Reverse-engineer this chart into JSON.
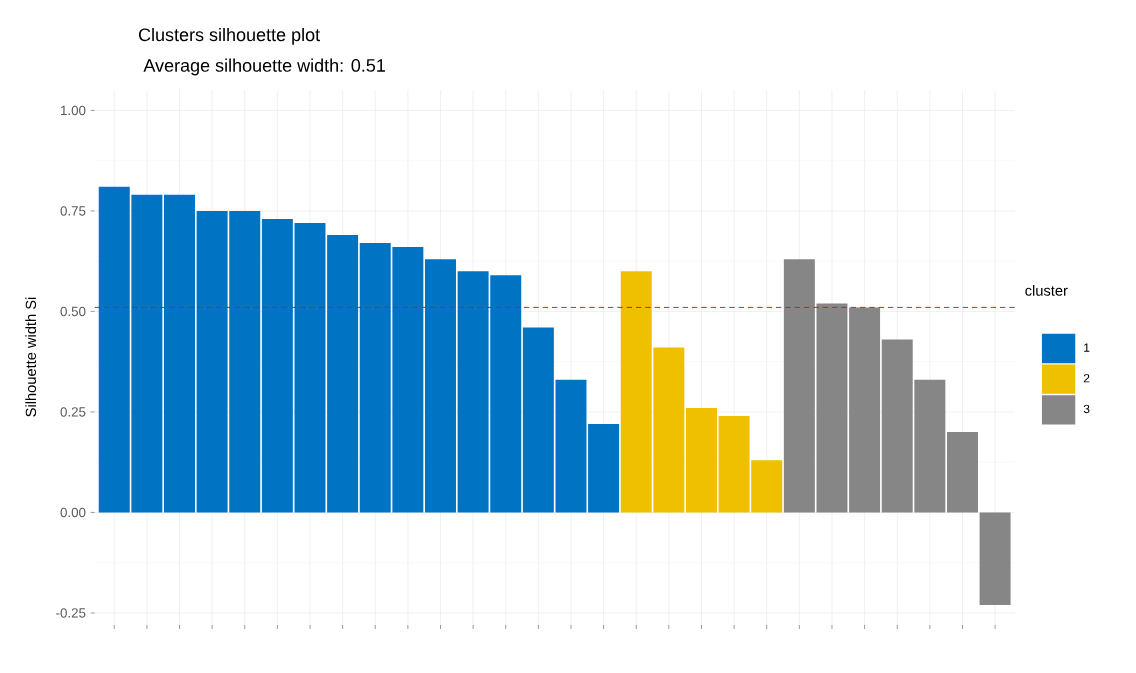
{
  "chart_data": {
    "type": "bar",
    "title": "Clusters silhouette plot",
    "subtitle": "Average silhouette width: 0.51",
    "ylabel": "Silhouette width Si",
    "legend_title": "cluster",
    "categories": [
      null,
      null,
      null,
      null,
      null,
      null,
      null,
      null,
      null,
      null,
      null,
      null,
      null,
      null,
      null,
      null,
      null,
      null,
      null,
      null,
      null,
      null,
      null,
      null,
      null,
      null,
      null,
      null
    ],
    "series": [
      {
        "name": "1",
        "color": "#0073c2",
        "values": [
          0.81,
          0.79,
          0.79,
          0.75,
          0.75,
          0.73,
          0.72,
          0.69,
          0.67,
          0.66,
          0.63,
          0.6,
          0.59,
          0.46,
          0.33,
          0.22,
          null,
          null,
          null,
          null,
          null,
          null,
          null,
          null,
          null,
          null,
          null,
          null
        ]
      },
      {
        "name": "2",
        "color": "#efc000",
        "values": [
          null,
          null,
          null,
          null,
          null,
          null,
          null,
          null,
          null,
          null,
          null,
          null,
          null,
          null,
          null,
          null,
          0.6,
          0.41,
          0.26,
          0.24,
          0.13,
          null,
          null,
          null,
          null,
          null,
          null,
          null
        ]
      },
      {
        "name": "3",
        "color": "#868686",
        "values": [
          null,
          null,
          null,
          null,
          null,
          null,
          null,
          null,
          null,
          null,
          null,
          null,
          null,
          null,
          null,
          null,
          null,
          null,
          null,
          null,
          null,
          0.63,
          0.52,
          0.51,
          0.43,
          0.33,
          0.2,
          -0.23
        ]
      }
    ],
    "ylim": [
      -0.28,
      1.05
    ],
    "yticks": [
      -0.25,
      {
        "value": 0,
        "label": "0.00"
      },
      0.25,
      {
        "value": 0.5,
        "label": "0.50"
      },
      0.75,
      {
        "value": 1.0,
        "label": "1.00"
      }
    ],
    "ref_lines": [
      {
        "axis": "y",
        "value": 0.51,
        "color": "#ff0000",
        "line_style": "dashed"
      }
    ],
    "grid": true,
    "legend": "right"
  }
}
